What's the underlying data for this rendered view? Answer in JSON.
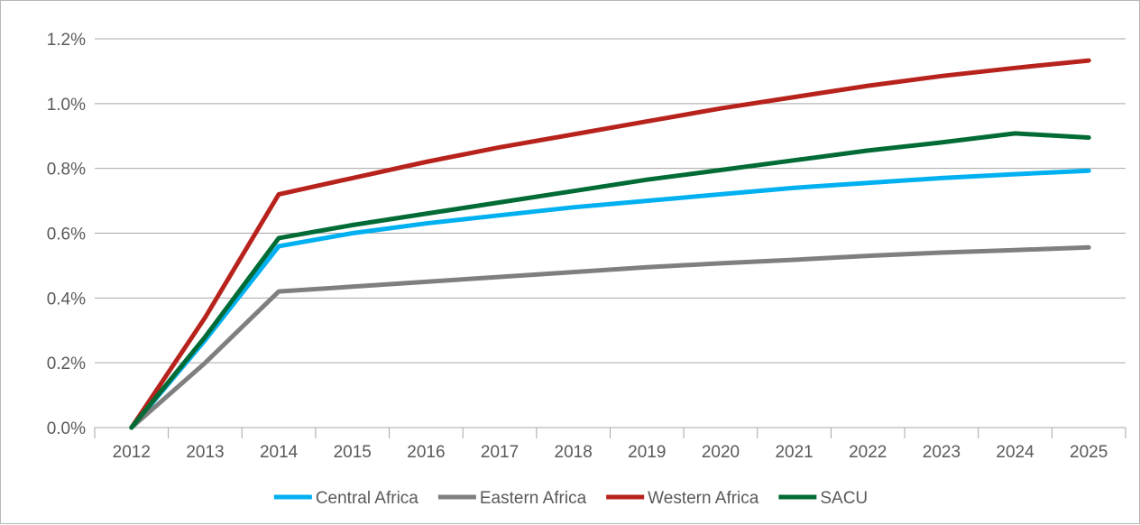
{
  "chart_data": {
    "type": "line",
    "title": "",
    "xlabel": "",
    "ylabel": "",
    "x": [
      2012,
      2013,
      2014,
      2015,
      2016,
      2017,
      2018,
      2019,
      2020,
      2021,
      2022,
      2023,
      2024,
      2025
    ],
    "x_tick_labels": [
      "2012",
      "2013",
      "2014",
      "2015",
      "2016",
      "2017",
      "2018",
      "2019",
      "2020",
      "2021",
      "2022",
      "2023",
      "2024",
      "2025"
    ],
    "ylim": [
      0,
      1.2
    ],
    "y_ticks": [
      0,
      0.2,
      0.4,
      0.6,
      0.8,
      1.0,
      1.2
    ],
    "y_tick_labels": [
      "0.0%",
      "0.2%",
      "0.4%",
      "0.6%",
      "0.8%",
      "1.0%",
      "1.2%"
    ],
    "y_unit": "%",
    "grid": "horizontal",
    "legend_position": "bottom",
    "series": [
      {
        "name": "Central Africa",
        "color": "#00b0f0",
        "values": [
          0.0,
          0.27,
          0.56,
          0.6,
          0.63,
          0.655,
          0.68,
          0.7,
          0.72,
          0.74,
          0.755,
          0.77,
          0.782,
          0.793
        ]
      },
      {
        "name": "Eastern Africa",
        "color": "#7f7f7f",
        "values": [
          0.0,
          0.2,
          0.42,
          0.435,
          0.45,
          0.465,
          0.48,
          0.495,
          0.507,
          0.518,
          0.53,
          0.54,
          0.548,
          0.556
        ]
      },
      {
        "name": "Western Africa",
        "color": "#b7231c",
        "values": [
          0.0,
          0.34,
          0.72,
          0.77,
          0.82,
          0.865,
          0.905,
          0.945,
          0.985,
          1.02,
          1.055,
          1.085,
          1.11,
          1.133
        ]
      },
      {
        "name": "SACU",
        "color": "#006b35",
        "values": [
          0.0,
          0.28,
          0.585,
          0.625,
          0.66,
          0.695,
          0.73,
          0.765,
          0.795,
          0.825,
          0.855,
          0.88,
          0.908,
          0.895
        ]
      }
    ]
  }
}
